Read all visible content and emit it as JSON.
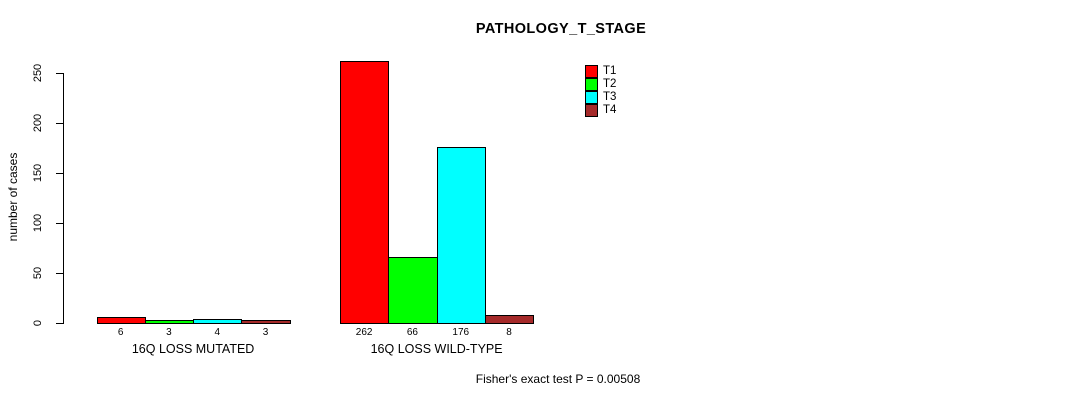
{
  "title": "PATHOLOGY_T_STAGE",
  "chart_data": {
    "type": "bar",
    "title": "PATHOLOGY_T_STAGE",
    "xlabel": "",
    "ylabel": "number of cases",
    "categories": [
      "16Q LOSS MUTATED",
      "16Q LOSS WILD-TYPE"
    ],
    "series": [
      {
        "name": "T1",
        "color": "#ff0000",
        "values": [
          6,
          262
        ]
      },
      {
        "name": "T2",
        "color": "#00ff00",
        "values": [
          3,
          66
        ]
      },
      {
        "name": "T3",
        "color": "#00ffff",
        "values": [
          4,
          176
        ]
      },
      {
        "name": "T4",
        "color": "#a52a2a",
        "values": [
          3,
          8
        ]
      }
    ],
    "yticks": [
      0,
      50,
      100,
      150,
      200,
      250
    ],
    "ylim": [
      0,
      262
    ],
    "grid": false,
    "bar_value_labels_shown": true,
    "legend_position": "top-right",
    "footer": "Fisher's exact test P = 0.00508"
  }
}
